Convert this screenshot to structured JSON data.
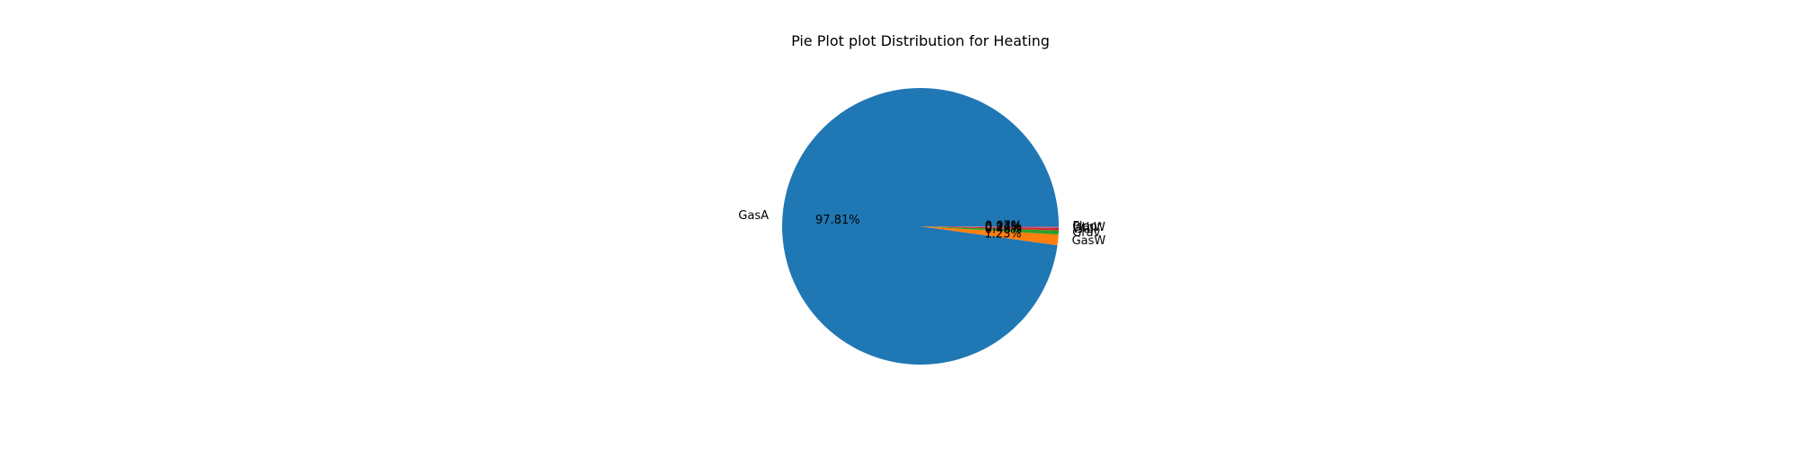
{
  "chart_data": {
    "type": "pie",
    "title": "Pie Plot plot Distribution for Heating",
    "categories": [
      "GasA",
      "GasW",
      "Grav",
      "Wall",
      "OthW",
      "Floor"
    ],
    "values": [
      97.81,
      1.23,
      0.48,
      0.27,
      0.14,
      0.07
    ],
    "value_labels": [
      "97.81%",
      "1.23%",
      "0.48%",
      "0.27%",
      "0.14%",
      "0.07%"
    ],
    "colors": [
      "#1f77b4",
      "#ff7f0e",
      "#2ca02c",
      "#d62728",
      "#9467bd",
      "#8c564b"
    ],
    "start_angle_deg": 0,
    "direction": "counterclockwise",
    "legend": "none"
  }
}
